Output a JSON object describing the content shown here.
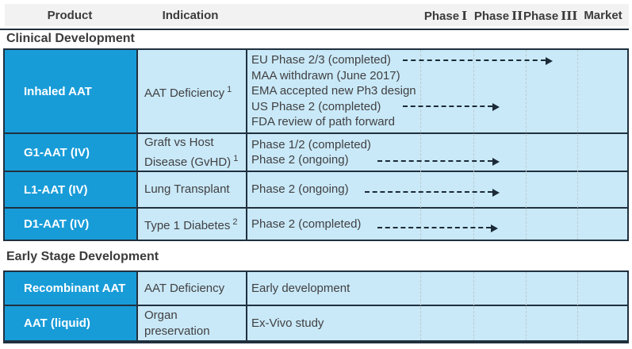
{
  "colors": {
    "brand_blue": "#189CD8",
    "light_blue": "#C9E9F8",
    "header_bg": "#F2F2F2",
    "dark_line": "#20303F",
    "text_dark": "#414042"
  },
  "header": {
    "product": "Product",
    "indication": "Indication",
    "phase1_word": "Phase",
    "phase1_numeral": "I",
    "phase2_word": "Phase",
    "phase2_numeral": "II",
    "phase3_word": "Phase",
    "phase3_numeral": "III",
    "market": "Market"
  },
  "sections": [
    "Clinical Development",
    "Early Stage Development"
  ],
  "rows": [
    {
      "product": "Inhaled AAT",
      "indication": "AAT Deficiency",
      "indication_sup": "1",
      "lines": [
        "EU Phase 2/3 (completed)",
        "MAA withdrawn (June 2017)",
        "EMA accepted new Ph3 design",
        "US Phase 2 (completed)",
        "FDA review of path forward"
      ]
    },
    {
      "product": "G1-AAT (IV)",
      "indication": "Graft vs Host Disease (GvHD)",
      "indication_sup": "1",
      "lines": [
        "Phase 1/2 (completed)",
        "Phase 2 (ongoing)"
      ]
    },
    {
      "product": "L1-AAT (IV)",
      "indication": "Lung Transplant",
      "lines": [
        "Phase 2 (ongoing)"
      ]
    },
    {
      "product": "D1-AAT (IV)",
      "indication": "Type 1 Diabetes",
      "indication_sup": "2",
      "lines": [
        "Phase 2 (completed)"
      ]
    },
    {
      "product": "Recombinant AAT",
      "indication": "AAT Deficiency",
      "lines": [
        "Early development"
      ]
    },
    {
      "product": "AAT (liquid)",
      "indication": "Organ preservation",
      "lines": [
        "Ex-Vivo study"
      ]
    }
  ],
  "arrows": [
    {
      "product": "Inhaled AAT",
      "line": "EU Phase 2/3 (completed)",
      "extends_to": "Phase III"
    },
    {
      "product": "Inhaled AAT",
      "line": "US Phase 2 (completed)",
      "extends_to": "Phase II"
    },
    {
      "product": "G1-AAT (IV)",
      "line": "Phase 2 (ongoing)",
      "extends_to": "Phase II"
    },
    {
      "product": "L1-AAT (IV)",
      "line": "Phase 2 (ongoing)",
      "extends_to": "Phase II"
    },
    {
      "product": "D1-AAT (IV)",
      "line": "Phase 2 (completed)",
      "extends_to": "Phase II"
    }
  ]
}
